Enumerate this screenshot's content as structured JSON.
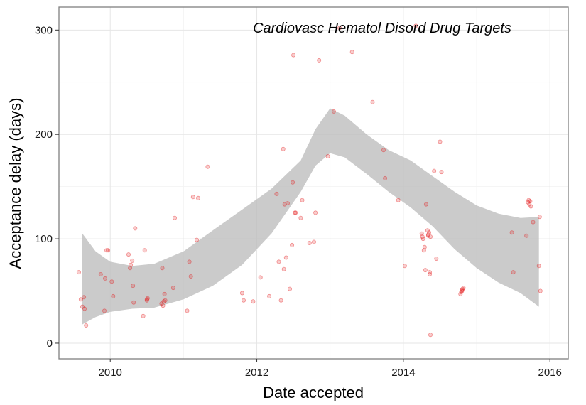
{
  "chart_data": {
    "type": "scatter",
    "title": "Cardiovasc Hematol Disord Drug Targets",
    "xlabel": "Date accepted",
    "ylabel": "Acceptance delay (days)",
    "xlim": [
      2009.3,
      2016.25
    ],
    "ylim": [
      -15,
      322
    ],
    "x_ticks": [
      2010,
      2012,
      2014,
      2016
    ],
    "y_ticks": [
      0,
      100,
      200,
      300
    ],
    "x_tick_labels": [
      "2010",
      "2012",
      "2014",
      "2016"
    ],
    "y_tick_labels": [
      "0",
      "100",
      "200",
      "300"
    ],
    "grid": true,
    "legend": "none",
    "colors": {
      "points": "#e41a1c",
      "band": "#bdbdbd"
    },
    "smooth_band": {
      "x": [
        2009.62,
        2009.8,
        2010.0,
        2010.3,
        2010.6,
        2011.0,
        2011.4,
        2011.8,
        2012.2,
        2012.6,
        2012.8,
        2013.0,
        2013.2,
        2013.5,
        2013.8,
        2014.1,
        2014.4,
        2014.7,
        2015.0,
        2015.3,
        2015.6,
        2015.85
      ],
      "lower": [
        18,
        25,
        30,
        33,
        34,
        42,
        55,
        75,
        105,
        145,
        170,
        182,
        178,
        162,
        145,
        130,
        112,
        90,
        72,
        58,
        48,
        35
      ],
      "upper": [
        105,
        88,
        78,
        74,
        76,
        88,
        108,
        128,
        148,
        175,
        205,
        225,
        218,
        200,
        185,
        175,
        160,
        145,
        132,
        124,
        120,
        121
      ]
    },
    "points": [
      [
        2009.57,
        68
      ],
      [
        2009.6,
        42
      ],
      [
        2009.62,
        35
      ],
      [
        2009.64,
        44
      ],
      [
        2009.65,
        33
      ],
      [
        2009.67,
        17
      ],
      [
        2009.87,
        66
      ],
      [
        2009.92,
        31
      ],
      [
        2009.93,
        62
      ],
      [
        2009.95,
        89
      ],
      [
        2009.97,
        89
      ],
      [
        2010.02,
        59
      ],
      [
        2010.04,
        45
      ],
      [
        2010.25,
        85
      ],
      [
        2010.27,
        72
      ],
      [
        2010.28,
        75
      ],
      [
        2010.3,
        79
      ],
      [
        2010.31,
        55
      ],
      [
        2010.32,
        39
      ],
      [
        2010.34,
        110
      ],
      [
        2010.45,
        26
      ],
      [
        2010.47,
        89
      ],
      [
        2010.5,
        41
      ],
      [
        2010.5,
        42
      ],
      [
        2010.51,
        43
      ],
      [
        2010.7,
        38
      ],
      [
        2010.71,
        72
      ],
      [
        2010.72,
        36
      ],
      [
        2010.73,
        40
      ],
      [
        2010.74,
        47
      ],
      [
        2010.75,
        41
      ],
      [
        2010.86,
        53
      ],
      [
        2010.88,
        120
      ],
      [
        2011.05,
        31
      ],
      [
        2011.08,
        78
      ],
      [
        2011.1,
        64
      ],
      [
        2011.13,
        140
      ],
      [
        2011.18,
        99
      ],
      [
        2011.2,
        139
      ],
      [
        2011.33,
        169
      ],
      [
        2011.8,
        48
      ],
      [
        2011.82,
        41
      ],
      [
        2011.95,
        40
      ],
      [
        2012.05,
        63
      ],
      [
        2012.17,
        45
      ],
      [
        2012.27,
        143
      ],
      [
        2012.3,
        78
      ],
      [
        2012.33,
        41
      ],
      [
        2012.36,
        186
      ],
      [
        2012.37,
        71
      ],
      [
        2012.38,
        133
      ],
      [
        2012.4,
        82
      ],
      [
        2012.42,
        134
      ],
      [
        2012.45,
        52
      ],
      [
        2012.48,
        94
      ],
      [
        2012.49,
        154
      ],
      [
        2012.5,
        276
      ],
      [
        2012.52,
        125
      ],
      [
        2012.53,
        125
      ],
      [
        2012.6,
        120
      ],
      [
        2012.62,
        137
      ],
      [
        2012.72,
        96
      ],
      [
        2012.78,
        97
      ],
      [
        2012.8,
        125
      ],
      [
        2012.85,
        271
      ],
      [
        2012.97,
        179
      ],
      [
        2013.05,
        222
      ],
      [
        2013.13,
        302
      ],
      [
        2013.3,
        279
      ],
      [
        2013.58,
        231
      ],
      [
        2013.73,
        185
      ],
      [
        2013.75,
        158
      ],
      [
        2013.93,
        137
      ],
      [
        2014.02,
        74
      ],
      [
        2014.17,
        304
      ],
      [
        2014.25,
        105
      ],
      [
        2014.26,
        102
      ],
      [
        2014.27,
        100
      ],
      [
        2014.28,
        89
      ],
      [
        2014.29,
        92
      ],
      [
        2014.3,
        70
      ],
      [
        2014.31,
        133
      ],
      [
        2014.33,
        108
      ],
      [
        2014.34,
        103
      ],
      [
        2014.34,
        104
      ],
      [
        2014.35,
        106
      ],
      [
        2014.36,
        68
      ],
      [
        2014.36,
        66
      ],
      [
        2014.37,
        102
      ],
      [
        2014.37,
        8
      ],
      [
        2014.42,
        165
      ],
      [
        2014.45,
        81
      ],
      [
        2014.5,
        193
      ],
      [
        2014.52,
        164
      ],
      [
        2014.78,
        47
      ],
      [
        2014.79,
        49
      ],
      [
        2014.8,
        51
      ],
      [
        2014.8,
        50
      ],
      [
        2014.81,
        52
      ],
      [
        2014.82,
        53
      ],
      [
        2015.48,
        106
      ],
      [
        2015.5,
        68
      ],
      [
        2015.68,
        103
      ],
      [
        2015.7,
        135
      ],
      [
        2015.71,
        137
      ],
      [
        2015.72,
        133
      ],
      [
        2015.73,
        136
      ],
      [
        2015.74,
        131
      ],
      [
        2015.77,
        116
      ],
      [
        2015.85,
        74
      ],
      [
        2015.86,
        121
      ],
      [
        2015.87,
        50
      ]
    ]
  }
}
